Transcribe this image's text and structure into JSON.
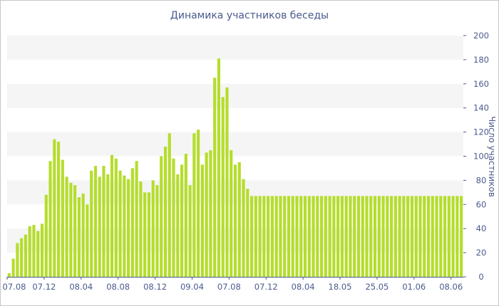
{
  "chart_data": {
    "type": "bar",
    "title": "Динамика участников беседы",
    "xlabel": "",
    "ylabel": "Число участников",
    "ylim": [
      0,
      200
    ],
    "yticks": [
      0,
      20,
      40,
      60,
      80,
      100,
      120,
      140,
      160,
      180,
      200
    ],
    "grid": "alternating horizontal bands",
    "y_axis_position": "right",
    "bar_color": "#b5dd2c",
    "band_color": "#f5f5f5",
    "text_color": "#4a5a8c",
    "xtick_labels": [
      {
        "label": "07.08",
        "index": 0
      },
      {
        "label": "07.12",
        "index": 9
      },
      {
        "label": "08.04",
        "index": 18
      },
      {
        "label": "08.08",
        "index": 27
      },
      {
        "label": "08.12",
        "index": 36
      },
      {
        "label": "09.04",
        "index": 45
      },
      {
        "label": "07.08",
        "index": 54
      },
      {
        "label": "07.12",
        "index": 63
      },
      {
        "label": "08.04",
        "index": 72
      },
      {
        "label": "18.05",
        "index": 81
      },
      {
        "label": "25.05",
        "index": 90
      },
      {
        "label": "01.06",
        "index": 99
      },
      {
        "label": "08.06",
        "index": 108
      }
    ],
    "values": [
      3,
      15,
      28,
      32,
      35,
      42,
      43,
      38,
      44,
      68,
      96,
      114,
      112,
      97,
      83,
      78,
      76,
      66,
      69,
      60,
      88,
      92,
      83,
      92,
      85,
      101,
      98,
      88,
      84,
      81,
      90,
      96,
      79,
      70,
      70,
      80,
      76,
      100,
      108,
      119,
      98,
      85,
      93,
      102,
      76,
      119,
      122,
      93,
      103,
      105,
      165,
      181,
      149,
      157,
      105,
      93,
      95,
      81,
      73,
      67,
      67,
      67,
      67,
      67,
      67,
      67,
      67,
      67,
      67,
      67,
      67,
      67,
      67,
      67,
      67,
      67,
      67,
      67,
      67,
      67,
      67,
      67,
      67,
      67,
      67,
      67,
      67,
      67,
      67,
      67,
      67,
      67,
      67,
      67,
      67,
      67,
      67,
      67,
      67,
      67,
      67,
      67,
      67,
      67,
      67,
      67,
      67,
      67,
      67,
      67,
      67
    ]
  }
}
